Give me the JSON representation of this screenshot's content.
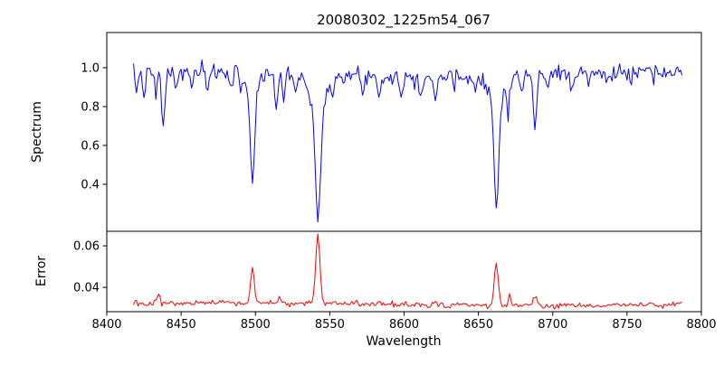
{
  "title": "20080302_1225m54_067",
  "chart_data": {
    "type": "line",
    "title": "20080302_1225m54_067",
    "xlabel": "Wavelength",
    "xlim": [
      8400,
      8800
    ],
    "xticks": [
      8400,
      8450,
      8500,
      8550,
      8600,
      8650,
      8700,
      8750,
      8800
    ],
    "xtick_labels": [
      "8400",
      "8450",
      "8500",
      "8550",
      "8600",
      "8650",
      "8700",
      "8750",
      "8800"
    ],
    "x_start": 8418,
    "x_end": 8787,
    "x_step": 1.0,
    "grid": false,
    "legend": "none",
    "background": "#ffffff",
    "panels": [
      {
        "name": "spectrum",
        "ylabel": "Spectrum",
        "color": "#0000ff",
        "ylim": [
          0.158,
          1.181
        ],
        "yticks": [
          0.4,
          0.6,
          0.8,
          1.0
        ],
        "ytick_labels": [
          "0.4",
          "0.6",
          "0.8",
          "1.0"
        ],
        "continuum": 0.965,
        "continuum_wiggle": 0.012,
        "noise_std": 0.021,
        "seed": 7,
        "absorption_lines_format": "[center_wavelength, depth, sigma]",
        "absorption_lines": [
          [
            8420,
            0.08,
            0.9
          ],
          [
            8425,
            0.1,
            0.9
          ],
          [
            8433,
            0.12,
            0.9
          ],
          [
            8438,
            0.3,
            1.0
          ],
          [
            8447,
            0.1,
            0.9
          ],
          [
            8457,
            0.07,
            0.9
          ],
          [
            8468,
            0.11,
            1.0
          ],
          [
            8484,
            0.07,
            0.9
          ],
          [
            8490,
            0.06,
            0.9
          ],
          [
            8498.0,
            0.47,
            1.4
          ],
          [
            8498.0,
            0.1,
            4.0
          ],
          [
            8514,
            0.2,
            0.9
          ],
          [
            8519,
            0.14,
            0.9
          ],
          [
            8527,
            0.09,
            0.9
          ],
          [
            8536,
            0.06,
            0.9
          ],
          [
            8542.1,
            0.62,
            1.8
          ],
          [
            8542.1,
            0.14,
            5.0
          ],
          [
            8552,
            0.05,
            0.9
          ],
          [
            8560,
            0.06,
            0.9
          ],
          [
            8572,
            0.06,
            0.9
          ],
          [
            8583,
            0.1,
            0.9
          ],
          [
            8598,
            0.11,
            0.9
          ],
          [
            8611,
            0.09,
            0.9
          ],
          [
            8621,
            0.13,
            0.9
          ],
          [
            8634,
            0.06,
            0.9
          ],
          [
            8648,
            0.08,
            0.9
          ],
          [
            8662.1,
            0.56,
            1.6
          ],
          [
            8662.1,
            0.12,
            4.5
          ],
          [
            8670,
            0.16,
            0.9
          ],
          [
            8679,
            0.11,
            0.9
          ],
          [
            8688,
            0.29,
            1.1
          ],
          [
            8697,
            0.08,
            0.9
          ],
          [
            8713,
            0.09,
            0.9
          ],
          [
            8724,
            0.06,
            0.9
          ],
          [
            8736,
            0.08,
            0.9
          ],
          [
            8752,
            0.06,
            0.9
          ],
          [
            8768,
            0.06,
            0.9
          ]
        ]
      },
      {
        "name": "error",
        "ylabel": "Error",
        "color": "#ff0000",
        "ylim": [
          0.0283,
          0.067
        ],
        "yticks": [
          0.04,
          0.06
        ],
        "ytick_labels": [
          "0.04",
          "0.06"
        ],
        "baseline": 0.0318,
        "baseline_wiggle": 0.0006,
        "noise_std": 0.0007,
        "seed": 13,
        "peaks_format": "[center_wavelength, height, sigma]",
        "peaks": [
          [
            8435,
            0.0055,
            1.0
          ],
          [
            8498,
            0.017,
            1.2
          ],
          [
            8516,
            0.003,
            1.0
          ],
          [
            8542,
            0.033,
            1.4
          ],
          [
            8583,
            0.0025,
            1.0
          ],
          [
            8621,
            0.002,
            1.0
          ],
          [
            8662,
            0.02,
            1.3
          ],
          [
            8671,
            0.004,
            1.0
          ],
          [
            8688,
            0.005,
            1.1
          ]
        ]
      }
    ]
  }
}
